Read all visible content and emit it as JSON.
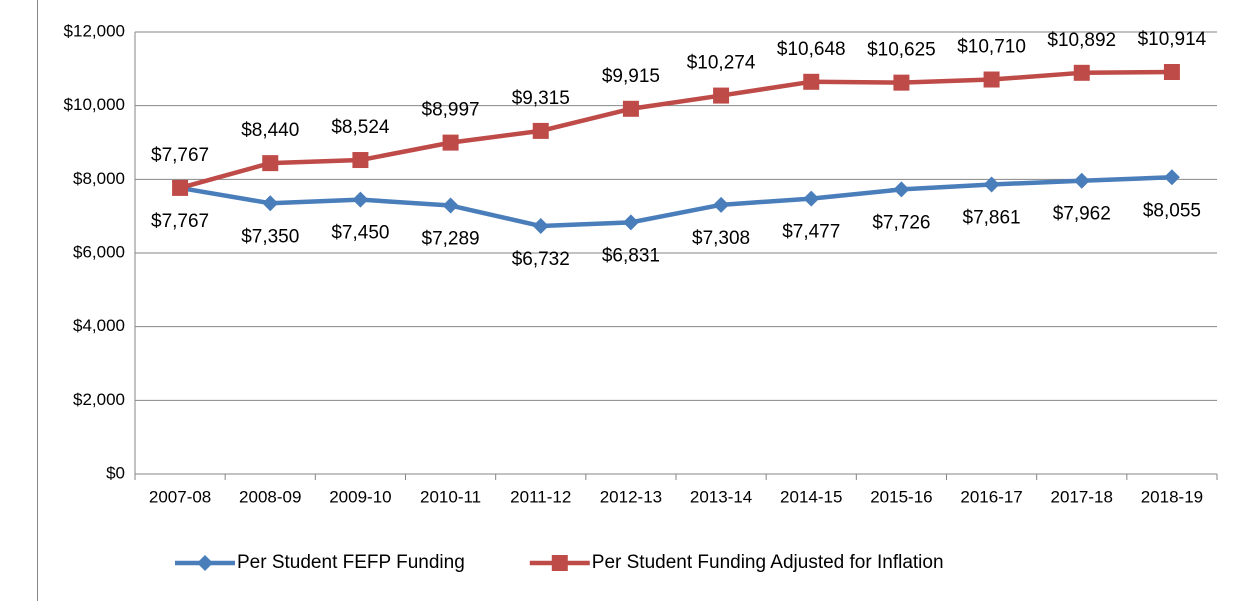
{
  "chart_data": {
    "type": "line",
    "categories": [
      "2007-08",
      "2008-09",
      "2009-10",
      "2010-11",
      "2011-12",
      "2012-13",
      "2013-14",
      "2014-15",
      "2015-16",
      "2016-17",
      "2017-18",
      "2018-19"
    ],
    "series": [
      {
        "name": "Per Student FEFP Funding",
        "color": "#4a7ebb",
        "marker": "diamond",
        "values": [
          7767,
          7350,
          7450,
          7289,
          6732,
          6831,
          7308,
          7477,
          7726,
          7861,
          7962,
          8055
        ],
        "value_labels": [
          "$7,767",
          "$7,350",
          "$7,450",
          "$7,289",
          "$6,732",
          "$6,831",
          "$7,308",
          "$7,477",
          "$7,726",
          "$7,861",
          "$7,962",
          "$8,055"
        ]
      },
      {
        "name": "Per Student Funding Adjusted for Inflation",
        "color": "#be4b48",
        "marker": "square",
        "values": [
          7767,
          8440,
          8524,
          8997,
          9315,
          9915,
          10274,
          10648,
          10625,
          10710,
          10892,
          10914
        ],
        "value_labels": [
          "$7,767",
          "$8,440",
          "$8,524",
          "$8,997",
          "$9,315",
          "$9,915",
          "$10,274",
          "$10,648",
          "$10,625",
          "$10,710",
          "$10,892",
          "$10,914"
        ]
      }
    ],
    "ylim": [
      0,
      12000
    ],
    "yticks": [
      {
        "value": 0,
        "label": "$0"
      },
      {
        "value": 2000,
        "label": "$2,000"
      },
      {
        "value": 4000,
        "label": "$4,000"
      },
      {
        "value": 6000,
        "label": "$6,000"
      },
      {
        "value": 8000,
        "label": "$8,000"
      },
      {
        "value": 10000,
        "label": "$10,000"
      },
      {
        "value": 12000,
        "label": "$12,000"
      }
    ],
    "grid": true,
    "legend": "bottom"
  }
}
